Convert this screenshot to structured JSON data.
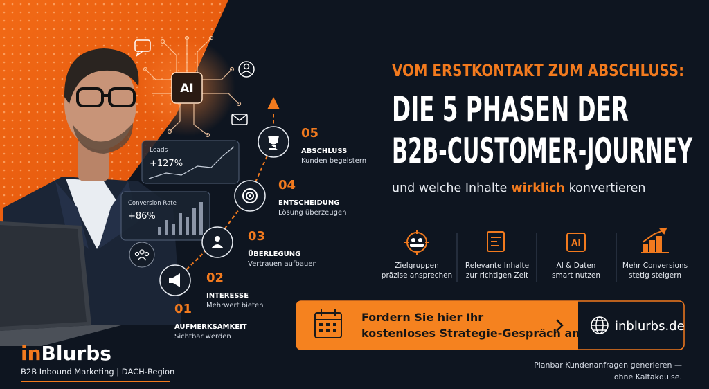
{
  "header": {
    "kicker": "VOM ERSTKONTAKT ZUM ABSCHLUSS:",
    "title_lines": [
      "DIE 5 PHASEN DER",
      "B2B-CUSTOMER-JOURNEY"
    ],
    "subtitle": {
      "before": "und welche Inhalte",
      "highlight": "wirklich",
      "after": "konvertieren"
    }
  },
  "ai_chip": "AI",
  "metrics": [
    {
      "label": "Leads",
      "value": "+127%"
    },
    {
      "label": "Conversion Rate",
      "value": "+86%"
    }
  ],
  "phases": [
    {
      "number": "01",
      "title": "AUFMERKSAMKEIT",
      "text": "Sichtbar werden"
    },
    {
      "number": "02",
      "title": "INTERESSE",
      "text": "Mehrwert bieten"
    },
    {
      "number": "03",
      "title": "ÜBERLEGUNG",
      "text": "Vertrauen aufbauen"
    },
    {
      "number": "04",
      "title": "ENTSCHEIDUNG",
      "text": "Lösung überzeugen"
    },
    {
      "number": "05",
      "title": "ABSCHLUSS",
      "text": "Kunden begeistern"
    }
  ],
  "features": [
    {
      "lines": [
        "Zielgruppen",
        "präzise ansprechen"
      ]
    },
    {
      "lines": [
        "Relevante Inhalte",
        "zur richtigen Zeit"
      ]
    },
    {
      "icon_label": "AI",
      "lines": [
        "AI & Daten",
        "smart nutzen"
      ]
    },
    {
      "lines": [
        "Mehr Conversions",
        "stetig steigern"
      ]
    }
  ],
  "cta": {
    "lines": [
      "Fordern Sie hier Ihr",
      "kostenloses Strategie-Gespräch an"
    ],
    "url": "inblurbs.de"
  },
  "note": {
    "lines": [
      "Planbar Kundenanfragen generieren —",
      "ohne Kaltakquise."
    ]
  },
  "brand": {
    "name_accent": "in",
    "name": "Blurbs",
    "tagline": "B2B Inbound Marketing | DACH-Region"
  }
}
